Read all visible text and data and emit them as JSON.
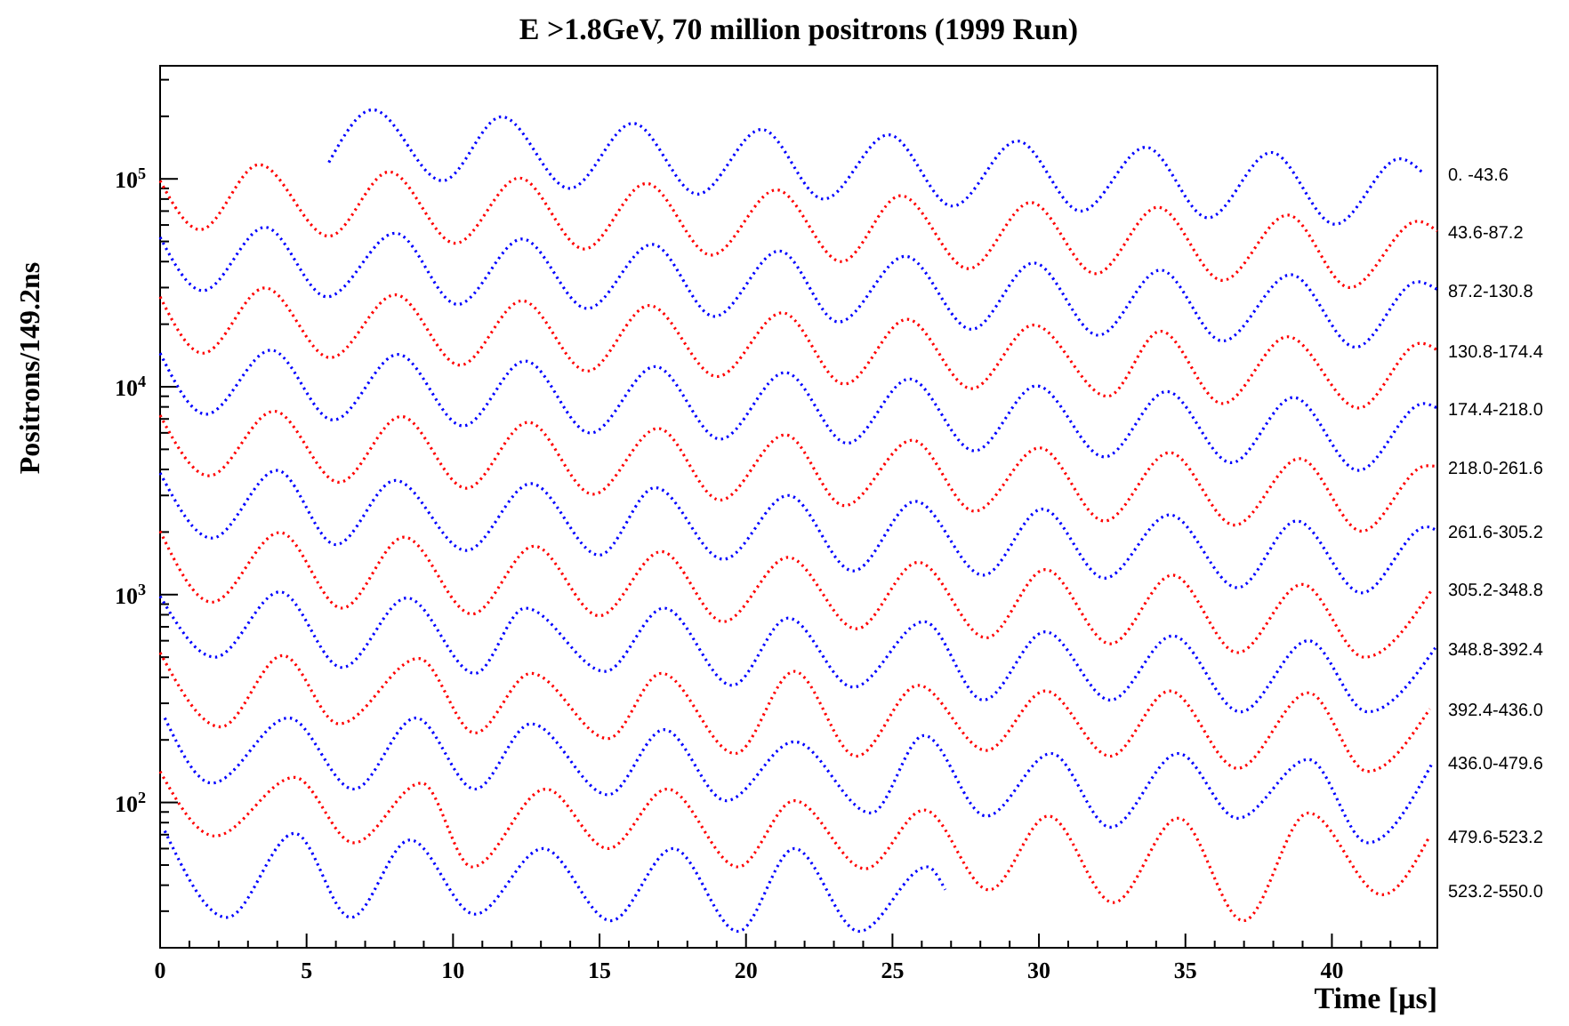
{
  "chart_data": {
    "type": "line",
    "title": "E >1.8GeV, 70 million positrons (1999 Run)",
    "xlabel": "Time [μs]",
    "ylabel": "Positrons/149.2ns",
    "log": true,
    "line_style": "dotted",
    "xlim": [
      0,
      43.6
    ],
    "ylim": [
      20,
      350000
    ],
    "xticks": [
      0,
      {
        "value": 1,
        "label": null
      },
      {
        "value": 2,
        "label": null
      },
      {
        "value": 3,
        "label": null
      },
      {
        "value": 4,
        "label": null
      },
      5,
      {
        "value": 6,
        "label": null
      },
      {
        "value": 7,
        "label": null
      },
      {
        "value": 8,
        "label": null
      },
      {
        "value": 9,
        "label": null
      },
      10,
      {
        "value": 11,
        "label": null
      },
      {
        "value": 12,
        "label": null
      },
      {
        "value": 13,
        "label": null
      },
      {
        "value": 14,
        "label": null
      },
      15,
      {
        "value": 16,
        "label": null
      },
      {
        "value": 17,
        "label": null
      },
      {
        "value": 18,
        "label": null
      },
      {
        "value": 19,
        "label": null
      },
      20,
      {
        "value": 21,
        "label": null
      },
      {
        "value": 22,
        "label": null
      },
      {
        "value": 23,
        "label": null
      },
      {
        "value": 24,
        "label": null
      },
      25,
      {
        "value": 26,
        "label": null
      },
      {
        "value": 27,
        "label": null
      },
      {
        "value": 28,
        "label": null
      },
      {
        "value": 29,
        "label": null
      },
      30,
      {
        "value": 31,
        "label": null
      },
      {
        "value": 32,
        "label": null
      },
      {
        "value": 33,
        "label": null
      },
      {
        "value": 34,
        "label": null
      },
      35,
      {
        "value": 36,
        "label": null
      },
      {
        "value": 37,
        "label": null
      },
      {
        "value": 38,
        "label": null
      },
      {
        "value": 39,
        "label": null
      },
      40,
      {
        "value": 41,
        "label": null
      },
      {
        "value": 42,
        "label": null
      },
      {
        "value": 43,
        "label": null
      }
    ],
    "yticks": [
      {
        "value": 30,
        "label": null
      },
      {
        "value": 40,
        "label": null
      },
      {
        "value": 50,
        "label": null
      },
      {
        "value": 60,
        "label": null
      },
      {
        "value": 70,
        "label": null
      },
      {
        "value": 80,
        "label": null
      },
      {
        "value": 90,
        "label": null
      },
      {
        "value": 100,
        "label": "10$^{2}$"
      },
      {
        "value": 200,
        "label": null
      },
      {
        "value": 300,
        "label": null
      },
      {
        "value": 400,
        "label": null
      },
      {
        "value": 500,
        "label": null
      },
      {
        "value": 600,
        "label": null
      },
      {
        "value": 700,
        "label": null
      },
      {
        "value": 800,
        "label": null
      },
      {
        "value": 900,
        "label": null
      },
      {
        "value": 1000,
        "label": "10$^{3}$"
      },
      {
        "value": 2000,
        "label": null
      },
      {
        "value": 3000,
        "label": null
      },
      {
        "value": 4000,
        "label": null
      },
      {
        "value": 5000,
        "label": null
      },
      {
        "value": 6000,
        "label": null
      },
      {
        "value": 7000,
        "label": null
      },
      {
        "value": 8000,
        "label": null
      },
      {
        "value": 9000,
        "label": null
      },
      {
        "value": 10000,
        "label": "10$^{4}$"
      },
      {
        "value": 20000,
        "label": null
      },
      {
        "value": 30000,
        "label": null
      },
      {
        "value": 40000,
        "label": null
      },
      {
        "value": 50000,
        "label": null
      },
      {
        "value": 60000,
        "label": null
      },
      {
        "value": 70000,
        "label": null
      },
      {
        "value": 80000,
        "label": null
      },
      {
        "value": 90000,
        "label": null
      },
      {
        "value": 100000,
        "label": "10$^{5}$"
      },
      {
        "value": 200000,
        "label": null
      },
      {
        "value": 300000,
        "label": null
      }
    ],
    "series": [
      {
        "name": "0. -43.6",
        "color": "#0000ff",
        "x": [
          5.76,
          7.26,
          9.64,
          11.66,
          13.98,
          16.14,
          18.35,
          20.53,
          22.65,
          24.87,
          27.05,
          29.27,
          31.43,
          33.65,
          35.77,
          37.93,
          40.11,
          42.32,
          43.13
        ],
        "values": [
          120000,
          215000,
          98000,
          199000,
          90000,
          185000,
          84500,
          173000,
          80000,
          163000,
          74000,
          152000,
          70000,
          142000,
          65000,
          134000,
          60500,
          125000,
          106000
        ]
      },
      {
        "name": "43.6-87.2",
        "color": "#ff0000",
        "x": [
          0,
          1.37,
          3.38,
          5.76,
          7.82,
          10.08,
          12.26,
          14.48,
          16.6,
          18.82,
          21.04,
          23.26,
          25.28,
          27.6,
          29.72,
          31.94,
          34.06,
          36.27,
          38.49,
          40.61,
          42.93,
          43.6
        ],
        "values": [
          98000,
          57000,
          117000,
          53000,
          108000,
          49000,
          101000,
          46000,
          95000,
          43000,
          88500,
          40000,
          83000,
          37000,
          77000,
          35000,
          73000,
          32500,
          67000,
          30000,
          62500,
          56000
        ]
      },
      {
        "name": "87.2-130.8",
        "color": "#0000ff",
        "x": [
          0,
          1.46,
          3.58,
          5.7,
          8.03,
          10.15,
          12.36,
          14.58,
          16.8,
          18.92,
          21.14,
          23.16,
          25.44,
          27.7,
          29.82,
          32.03,
          34.15,
          36.27,
          38.6,
          40.81,
          42.93,
          43.6
        ],
        "values": [
          52400,
          29000,
          58500,
          27100,
          54800,
          24900,
          51400,
          23800,
          48400,
          21800,
          45000,
          20500,
          42400,
          18900,
          39400,
          17700,
          36400,
          16600,
          34600,
          15500,
          32000,
          29300
        ]
      },
      {
        "name": "130.8-174.4",
        "color": "#ff0000",
        "x": [
          0,
          1.46,
          3.58,
          5.81,
          8.03,
          10.24,
          12.36,
          14.58,
          16.7,
          19.02,
          21.24,
          23.36,
          25.5,
          27.7,
          29.82,
          32.34,
          34.15,
          36.27,
          38.49,
          40.91,
          43.03,
          43.6
        ],
        "values": [
          27100,
          14500,
          29900,
          13800,
          27700,
          12700,
          25900,
          11900,
          24600,
          11200,
          22700,
          10300,
          21100,
          9800,
          19800,
          9000,
          18500,
          8300,
          17400,
          7900,
          16200,
          15000
        ]
      },
      {
        "name": "174.4-218.0",
        "color": "#0000ff",
        "x": [
          0,
          1.57,
          3.79,
          5.91,
          8.12,
          10.34,
          12.46,
          14.69,
          16.9,
          19.12,
          21.34,
          23.46,
          25.58,
          27.8,
          29.92,
          32.24,
          34.36,
          36.57,
          38.69,
          40.91,
          43.13,
          43.6
        ],
        "values": [
          14500,
          7380,
          15000,
          6920,
          14300,
          6480,
          13300,
          5990,
          12500,
          5600,
          11700,
          5350,
          10900,
          4920,
          10100,
          4600,
          9480,
          4310,
          8880,
          3960,
          8300,
          7890
        ]
      },
      {
        "name": "218.0-261.6",
        "color": "#ff0000",
        "x": [
          0,
          1.67,
          3.89,
          6.11,
          8.23,
          10.45,
          12.57,
          14.78,
          17,
          19.12,
          21.34,
          23.36,
          25.68,
          27.8,
          30.02,
          32.24,
          34.46,
          36.68,
          38.9,
          41.02,
          43.23,
          43.6
        ],
        "values": [
          7290,
          3730,
          7630,
          3470,
          7190,
          3250,
          6740,
          3040,
          6300,
          2850,
          5870,
          2680,
          5530,
          2520,
          5080,
          2260,
          4820,
          2160,
          4510,
          2020,
          4170,
          4140
        ]
      },
      {
        "name": "261.6-305.2",
        "color": "#0000ff",
        "x": [
          0,
          1.77,
          3.99,
          6,
          8.03,
          10.45,
          12.66,
          14.99,
          16.9,
          19.23,
          21.44,
          23.66,
          25.78,
          28.1,
          30.12,
          32.24,
          34.46,
          36.78,
          38.8,
          41.02,
          43.23,
          43.6
        ],
        "values": [
          3850,
          1870,
          3960,
          1740,
          3540,
          1630,
          3420,
          1550,
          3270,
          1480,
          3000,
          1300,
          2810,
          1240,
          2580,
          1200,
          2420,
          1080,
          2260,
          1020,
          2120,
          2020
        ]
      },
      {
        "name": "305.2-348.8",
        "color": "#ff0000",
        "x": [
          0,
          1.77,
          4.09,
          6.21,
          8.33,
          10.65,
          12.77,
          14.99,
          17.11,
          19.23,
          21.44,
          23.77,
          25.88,
          28.2,
          30.22,
          32.44,
          34.56,
          36.78,
          38.99,
          41.11,
          43.44
        ],
        "values": [
          2020,
          920,
          1990,
          861,
          1890,
          807,
          1710,
          791,
          1610,
          741,
          1510,
          685,
          1430,
          620,
          1320,
          580,
          1240,
          526,
          1120,
          500,
          1070
        ]
      },
      {
        "name": "348.8-392.4",
        "color": "#0000ff",
        "x": [
          0,
          1.87,
          4.09,
          6.21,
          8.43,
          10.75,
          12.46,
          15.19,
          17.2,
          19.53,
          21.44,
          23.66,
          26.08,
          28.1,
          30.22,
          32.44,
          34.56,
          36.88,
          39.2,
          41.22,
          43.53
        ],
        "values": [
          982,
          500,
          1030,
          446,
          963,
          418,
          861,
          427,
          861,
          366,
          771,
          359,
          741,
          311,
          662,
          311,
          633,
          273,
          600,
          273,
          554
        ]
      },
      {
        "name": "392.4-436.0",
        "color": "#ff0000",
        "x": [
          0,
          2.07,
          4.19,
          6.11,
          8.83,
          10.75,
          12.66,
          15.29,
          17.11,
          19.63,
          21.65,
          23.77,
          25.88,
          28.2,
          30.22,
          32.44,
          34.46,
          36.78,
          39.2,
          41.22,
          43.34
        ],
        "values": [
          526,
          231,
          509,
          239,
          493,
          216,
          418,
          203,
          418,
          172,
          427,
          167,
          366,
          178,
          344,
          167,
          344,
          146,
          337,
          141,
          282
        ]
      },
      {
        "name": "436.0-479.6",
        "color": "#0000ff",
        "x": [
          0.16,
          1.77,
          4.39,
          6.61,
          8.73,
          10.75,
          12.66,
          15.29,
          17.2,
          19.32,
          21.65,
          24.27,
          26.08,
          28.2,
          30.42,
          32.44,
          34.76,
          36.78,
          39.2,
          41.22,
          43.44
        ],
        "values": [
          255,
          124,
          255,
          116,
          255,
          116,
          239,
          109,
          224,
          102,
          196,
          89,
          210,
          86,
          172,
          76,
          172,
          84,
          161,
          64,
          156
        ]
      },
      {
        "name": "479.6-523.2",
        "color": "#ff0000",
        "x": [
          0,
          1.87,
          4.59,
          6.61,
          8.93,
          10.65,
          13.17,
          15.29,
          17.31,
          19.73,
          21.65,
          24.07,
          26.08,
          28.3,
          30.32,
          32.54,
          34.76,
          36.98,
          39.2,
          41.72,
          43.34
        ],
        "values": [
          141,
          69,
          132,
          64,
          124,
          49,
          116,
          60,
          116,
          49,
          102,
          48,
          92,
          38,
          86,
          33,
          84,
          27,
          89,
          36,
          69
        ]
      },
      {
        "name": "523.2-550.0",
        "color": "#0000ff",
        "x": [
          0.16,
          2.28,
          4.59,
          6.51,
          8.53,
          10.75,
          13.07,
          15.39,
          17.51,
          19.73,
          21.65,
          23.86,
          26.19,
          26.8
        ],
        "values": [
          73,
          28,
          71,
          28,
          66,
          29,
          60,
          27,
          60,
          24,
          60,
          24,
          49,
          38
        ]
      }
    ]
  }
}
